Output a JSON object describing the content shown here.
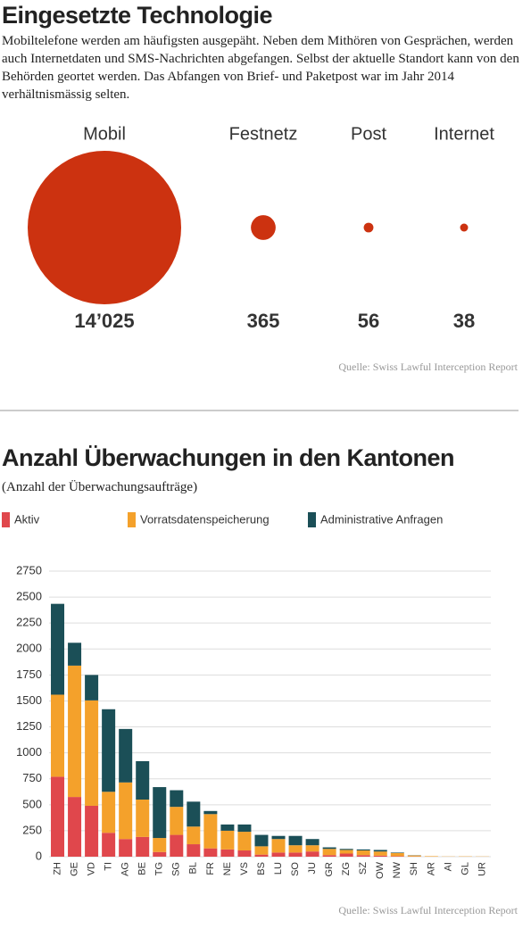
{
  "chart_data": [
    {
      "type": "bubble",
      "title": "Eingesetzte Technologie",
      "subtitle": "Mobiltelefone werden am häufigsten ausgepäht. Neben dem Mithören von Gesprächen, werden auch Internetdaten und SMS-Nachrichten abgefangen. Selbst der aktuelle Standort kann von den Behörden geortet werden. Das Abfangen von Brief- und Paketpost war im Jahr 2014 verhältnismässig selten.",
      "categories": [
        "Mobil",
        "Festnetz",
        "Post",
        "Internet"
      ],
      "values": [
        14025,
        365,
        56,
        38
      ],
      "value_labels": [
        "14’025",
        "365",
        "56",
        "38"
      ],
      "color": "#cc3210",
      "source": "Quelle: Swiss Lawful Interception Report"
    },
    {
      "type": "bar",
      "stacked": true,
      "title": "Anzahl Überwachungen in den Kantonen",
      "subtitle": "(Anzahl der Überwachungsaufträge)",
      "categories": [
        "ZH",
        "GE",
        "VD",
        "TI",
        "AG",
        "BE",
        "TG",
        "SG",
        "BL",
        "FR",
        "NE",
        "VS",
        "BS",
        "LU",
        "SO",
        "JU",
        "GR",
        "ZG",
        "SZ",
        "OW",
        "NW",
        "SH",
        "AR",
        "AI",
        "GL",
        "UR"
      ],
      "series": [
        {
          "name": "Aktiv",
          "color": "#e0474c",
          "values": [
            770,
            575,
            490,
            230,
            170,
            190,
            45,
            210,
            120,
            80,
            70,
            60,
            20,
            40,
            40,
            50,
            15,
            30,
            15,
            10,
            5,
            2,
            0,
            0,
            0,
            0
          ]
        },
        {
          "name": "Vorratsdatenspeicherung",
          "color": "#f4a12b",
          "values": [
            790,
            1265,
            1015,
            395,
            545,
            360,
            135,
            270,
            170,
            330,
            180,
            180,
            80,
            130,
            70,
            60,
            60,
            35,
            45,
            40,
            30,
            10,
            5,
            2,
            3,
            2
          ]
        },
        {
          "name": "Administrative Anfragen",
          "color": "#1b4f57",
          "values": [
            875,
            220,
            245,
            795,
            515,
            370,
            490,
            160,
            240,
            30,
            60,
            70,
            110,
            30,
            90,
            60,
            15,
            10,
            10,
            15,
            5,
            2,
            0,
            0,
            0,
            0
          ]
        }
      ],
      "ylim": [
        0,
        2750
      ],
      "yticks": [
        0,
        250,
        500,
        750,
        1000,
        1250,
        1500,
        1750,
        2000,
        2250,
        2500,
        2750
      ],
      "grid": true,
      "legend": "top",
      "source": "Quelle: Swiss Lawful Interception Report"
    }
  ]
}
